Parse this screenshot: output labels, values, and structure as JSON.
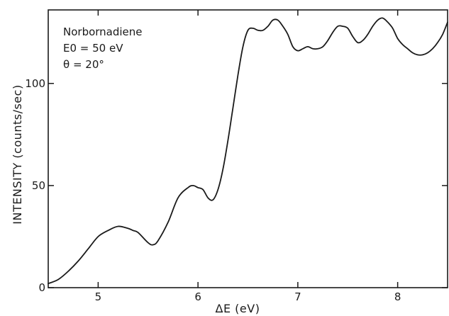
{
  "chart_data": {
    "type": "line",
    "title": "",
    "xlabel": "ΔE (eV)",
    "ylabel": "INTENSITY  (counts/sec)",
    "xlim": [
      4.5,
      8.5
    ],
    "ylim": [
      0,
      136
    ],
    "xticks": [
      5,
      6,
      7,
      8
    ],
    "yticks": [
      0,
      50,
      100
    ],
    "xtick_labels": [
      "5",
      "6",
      "7",
      "8"
    ],
    "ytick_labels": [
      "0",
      "50",
      "100"
    ],
    "grid": false,
    "annotations": [
      "Norbornadiene",
      "E0 = 50 eV",
      "θ = 20°"
    ],
    "series": [
      {
        "x": [
          4.5,
          4.6,
          4.7,
          4.8,
          4.9,
          5.0,
          5.1,
          5.2,
          5.3,
          5.35,
          5.4,
          5.5,
          5.55,
          5.6,
          5.7,
          5.8,
          5.9,
          5.95,
          6.0,
          6.05,
          6.1,
          6.15,
          6.2,
          6.25,
          6.3,
          6.35,
          6.4,
          6.45,
          6.5,
          6.55,
          6.6,
          6.65,
          6.7,
          6.75,
          6.8,
          6.85,
          6.9,
          6.95,
          7.0,
          7.05,
          7.1,
          7.15,
          7.2,
          7.25,
          7.3,
          7.35,
          7.4,
          7.45,
          7.5,
          7.55,
          7.6,
          7.65,
          7.7,
          7.75,
          7.8,
          7.85,
          7.9,
          7.95,
          8.0,
          8.05,
          8.1,
          8.15,
          8.2,
          8.25,
          8.3,
          8.35,
          8.4,
          8.45,
          8.5
        ],
        "y": [
          2,
          4,
          8,
          13,
          19,
          25,
          28,
          30,
          29,
          28,
          27,
          22,
          21,
          23,
          32,
          44,
          49,
          50,
          49,
          48,
          44,
          43,
          48,
          58,
          72,
          88,
          104,
          118,
          126,
          127,
          126,
          126,
          128,
          131,
          131,
          128,
          124,
          118,
          116,
          117,
          118,
          117,
          117,
          118,
          121,
          125,
          128,
          128,
          127,
          123,
          120,
          121,
          124,
          128,
          131,
          132,
          130,
          127,
          122,
          119,
          117,
          115,
          114,
          114,
          115,
          117,
          120,
          124,
          130
        ]
      }
    ]
  }
}
